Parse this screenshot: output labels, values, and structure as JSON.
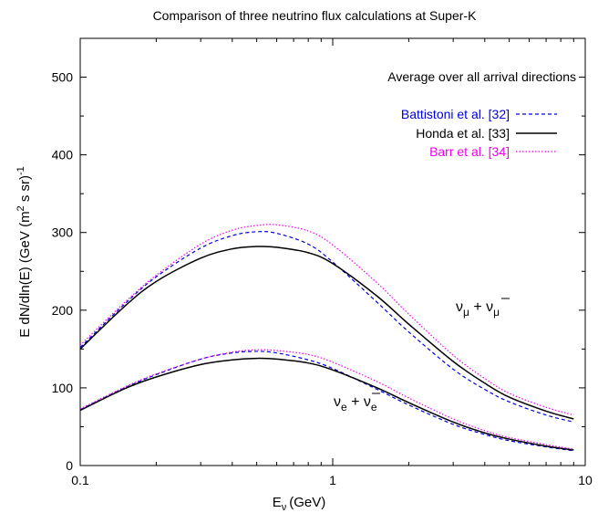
{
  "chart_data": {
    "type": "line",
    "title": "Comparison of three neutrino flux calculations at Super-K",
    "xlabel": {
      "main": "E",
      "sub": "ν",
      "unit": "(GeV)"
    },
    "ylabel": {
      "main": "E dN/dln(E) (GeV (m",
      "sup2": "2",
      "mid": " s sr)",
      "sup1": "-1"
    },
    "x_scale": "log",
    "xlim": [
      0.1,
      10
    ],
    "ylim": [
      0,
      550
    ],
    "x_ticks": [
      0.1,
      1,
      10
    ],
    "x_tick_labels": [
      "0.1",
      "1",
      "10"
    ],
    "y_ticks": [
      0,
      100,
      200,
      300,
      400,
      500
    ],
    "y_tick_labels": [
      "0",
      "100",
      "200",
      "300",
      "400",
      "500"
    ],
    "grid": false,
    "legend_placement": "top-right",
    "legend_header": "Average over all arrival directions",
    "annotations": {
      "numu": {
        "nu": "ν",
        "sub": "μ",
        "plus": " + ",
        "nubar": "ν",
        "subbar": "μ"
      },
      "nue": {
        "nu": "ν",
        "sub": "e",
        "plus": " + ",
        "nubar": "ν",
        "subbar": "e"
      }
    },
    "x": [
      0.1,
      0.15,
      0.2,
      0.3,
      0.4,
      0.5,
      0.6,
      0.8,
      1.0,
      1.5,
      2.0,
      3.0,
      4.0,
      5.0,
      7.0,
      9.0
    ],
    "series": [
      {
        "name": "Battistoni et al. [32]",
        "color": "#0000dd",
        "dash": "dashed",
        "groups": {
          "numu": [
            152,
            208,
            243,
            280,
            296,
            301,
            299,
            285,
            262,
            210,
            172,
            124,
            98,
            82,
            65,
            56
          ],
          "nue": [
            72,
            100,
            117,
            137,
            145,
            147,
            145,
            136,
            125,
            98,
            78,
            53,
            40,
            32,
            24,
            19
          ]
        }
      },
      {
        "name": "Honda et al. [33]",
        "color": "#000000",
        "dash": "solid",
        "groups": {
          "numu": [
            150,
            205,
            237,
            267,
            279,
            282,
            281,
            274,
            260,
            218,
            182,
            134,
            106,
            88,
            70,
            60
          ],
          "nue": [
            71,
            99,
            114,
            130,
            136,
            138,
            137,
            132,
            123,
            100,
            81,
            56,
            42,
            34,
            25,
            20
          ]
        }
      },
      {
        "name": "Barr et al. [34]",
        "color": "#ee00ee",
        "dash": "dotted",
        "groups": {
          "numu": [
            155,
            210,
            245,
            285,
            303,
            309,
            310,
            302,
            284,
            235,
            195,
            142,
            112,
            93,
            75,
            65
          ],
          "nue": [
            73,
            101,
            118,
            137,
            146,
            149,
            148,
            143,
            133,
            108,
            87,
            60,
            45,
            36,
            27,
            21
          ]
        }
      }
    ]
  }
}
